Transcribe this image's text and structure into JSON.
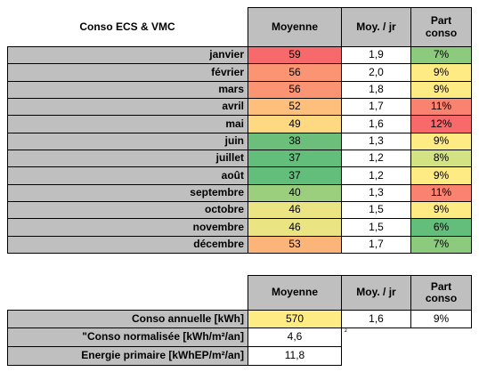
{
  "table1": {
    "title": "Conso ECS & VMC",
    "headers": {
      "moyenne": "Moyenne",
      "moy_jr": "Moy. / jr",
      "part_conso": "Part\nconso"
    },
    "rows": [
      {
        "month": "janvier",
        "moyenne": "59",
        "moy_jr": "1,9",
        "part": "7%",
        "moy_color": "#f8696b",
        "part_color": "#8ccb7e"
      },
      {
        "month": "février",
        "moyenne": "56",
        "moy_jr": "2,0",
        "part": "9%",
        "moy_color": "#fa9473",
        "part_color": "#ffeb84"
      },
      {
        "month": "mars",
        "moyenne": "56",
        "moy_jr": "1,8",
        "part": "9%",
        "moy_color": "#fa9473",
        "part_color": "#ffeb84"
      },
      {
        "month": "avril",
        "moyenne": "52",
        "moy_jr": "1,7",
        "part": "11%",
        "moy_color": "#fdbf7b",
        "part_color": "#f98370"
      },
      {
        "month": "mai",
        "moyenne": "49",
        "moy_jr": "1,6",
        "part": "12%",
        "moy_color": "#fed981",
        "part_color": "#f8696b"
      },
      {
        "month": "juin",
        "moyenne": "38",
        "moy_jr": "1,3",
        "part": "9%",
        "moy_color": "#6bbf7a",
        "part_color": "#ffeb84"
      },
      {
        "month": "juillet",
        "moyenne": "37",
        "moy_jr": "1,2",
        "part": "8%",
        "moy_color": "#63be7b",
        "part_color": "#d3e282"
      },
      {
        "month": "août",
        "moyenne": "37",
        "moy_jr": "1,2",
        "part": "9%",
        "moy_color": "#63be7b",
        "part_color": "#ffeb84"
      },
      {
        "month": "septembre",
        "moyenne": "40",
        "moy_jr": "1,3",
        "part": "11%",
        "moy_color": "#9ccf7d",
        "part_color": "#f98370"
      },
      {
        "month": "octobre",
        "moyenne": "46",
        "moy_jr": "1,5",
        "part": "9%",
        "moy_color": "#ebe483",
        "part_color": "#ffeb84"
      },
      {
        "month": "novembre",
        "moyenne": "46",
        "moy_jr": "1,5",
        "part": "6%",
        "moy_color": "#ebe483",
        "part_color": "#63be7b"
      },
      {
        "month": "décembre",
        "moyenne": "53",
        "moy_jr": "1,7",
        "part": "7%",
        "moy_color": "#fcb579",
        "part_color": "#8ccb7e"
      }
    ]
  },
  "table2": {
    "headers": {
      "moyenne": "Moyenne",
      "moy_jr": "Moy. / jr",
      "part_conso": "Part\nconso"
    },
    "annual": {
      "label": "Conso annuelle  [kWh]",
      "moyenne": "570",
      "moy_jr": "1,6",
      "part": "9%",
      "moy_color": "#ffeb84"
    },
    "normalized": {
      "label": "\"Conso normalisée [kWh/m²/an]",
      "value": "4,6",
      "superscript": "²"
    },
    "primary": {
      "label": "Energie primaire [kWhEP/m²/an]",
      "value": "11,8"
    }
  }
}
